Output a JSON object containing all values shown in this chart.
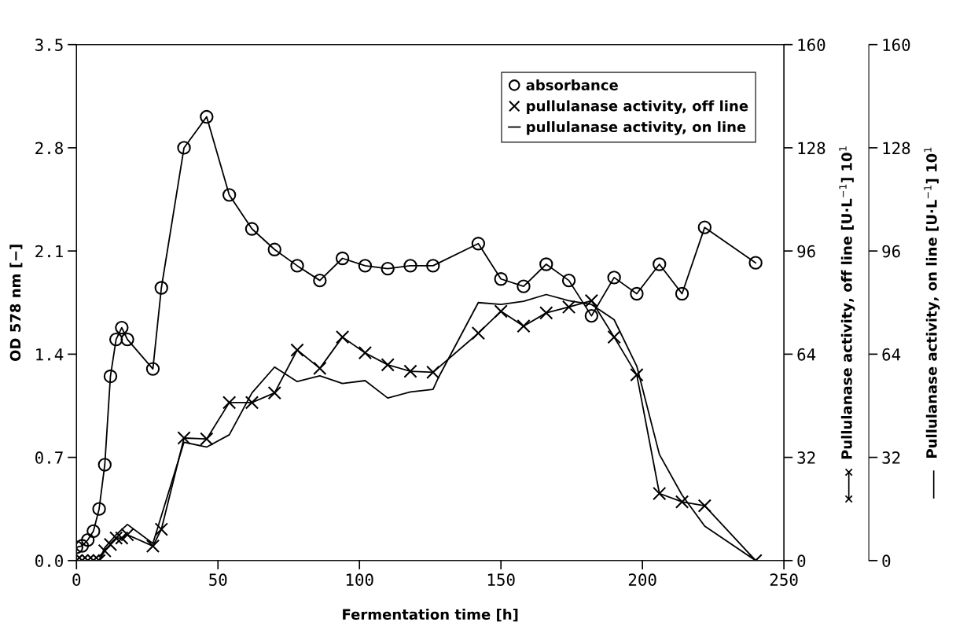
{
  "chart_data": {
    "type": "line",
    "xlabel": "Fermentation time [h]",
    "ylabel": "OD 578 nm [−]",
    "y2label": "Pullulanase activity, off line [U·L$^{−1}$] 10$^{1}$",
    "y3label": "Pullulanase activity, on line [U·L$^{−1}$] 10$^{1}$",
    "xlim": [
      0,
      250
    ],
    "xticks": [
      0,
      50,
      100,
      150,
      200,
      250
    ],
    "ylim": [
      0,
      3.5
    ],
    "yticks": [
      {
        "value": 0,
        "label": "0.0"
      },
      {
        "value": 0.7,
        "label": "0.7"
      },
      {
        "value": 1.4,
        "label": "1.4"
      },
      {
        "value": 2.1,
        "label": "2.1"
      },
      {
        "value": 2.8,
        "label": "2.8"
      },
      {
        "value": 3.5,
        "label": "3.5"
      }
    ],
    "y2lim": [
      0,
      160
    ],
    "y2ticks": [
      0,
      32,
      64,
      96,
      128,
      160
    ],
    "y3lim": [
      0,
      160
    ],
    "y3ticks": [
      0,
      32,
      64,
      96,
      128,
      160
    ],
    "grid": false,
    "legend": "top right",
    "series": [
      {
        "name": "absorbance",
        "color": "#000000",
        "marker": "circle",
        "x": [
          0,
          2,
          4,
          6,
          8,
          10,
          12,
          14,
          16,
          18,
          27,
          30,
          38,
          46,
          54,
          62,
          70,
          78,
          86,
          94,
          102,
          110,
          118,
          126,
          142,
          150,
          158,
          166,
          174,
          182,
          190,
          198,
          206,
          214,
          222,
          240
        ],
        "values": [
          0.09,
          0.1,
          0.14,
          0.2,
          0.35,
          0.65,
          1.25,
          1.5,
          1.58,
          1.5,
          1.3,
          1.85,
          2.8,
          3.01,
          2.48,
          2.25,
          2.11,
          2.0,
          1.9,
          2.05,
          2.0,
          1.98,
          2.0,
          2.0,
          2.15,
          1.91,
          1.86,
          2.01,
          1.9,
          1.66,
          1.92,
          1.81,
          2.01,
          1.81,
          2.26,
          2.02
        ]
      },
      {
        "name": "pullulanase activity, off line",
        "color": "#000000",
        "marker": "cross",
        "axis": "y2",
        "x": [
          0,
          2,
          4,
          6,
          8,
          10,
          12,
          14,
          16,
          18,
          27,
          30,
          38,
          46,
          54,
          62,
          70,
          78,
          86,
          94,
          102,
          110,
          118,
          126,
          142,
          150,
          158,
          166,
          174,
          182,
          190,
          198,
          206,
          214,
          222,
          240
        ],
        "values": [
          0,
          0,
          0,
          0,
          0,
          3,
          5,
          7,
          7,
          8,
          4.5,
          9.7,
          38,
          37.7,
          49,
          49,
          52,
          65.3,
          59.6,
          69.3,
          64.4,
          60.7,
          58.7,
          58.4,
          70.5,
          77.3,
          72.7,
          76.8,
          78.6,
          80.6,
          69.3,
          57.6,
          20.8,
          18.2,
          17.0,
          0
        ]
      },
      {
        "name": "pullulanase activity, on line",
        "color": "#000000",
        "marker": "none",
        "axis": "y3",
        "x": [
          0,
          8,
          10,
          14,
          18,
          27,
          38,
          46,
          54,
          62,
          70,
          78,
          86,
          94,
          102,
          110,
          118,
          126,
          128,
          142,
          150,
          158,
          166,
          174,
          182,
          190,
          198,
          206,
          214,
          222,
          240
        ],
        "values": [
          0,
          0,
          4,
          8,
          11.2,
          5.3,
          36.7,
          35.2,
          39,
          52,
          60,
          55.5,
          57.3,
          54.9,
          55.8,
          50.4,
          52.3,
          53.1,
          56.9,
          80,
          79.4,
          80.4,
          82.5,
          80.6,
          79.4,
          74.7,
          60.3,
          32.9,
          20.3,
          10.7,
          0
        ]
      }
    ]
  }
}
